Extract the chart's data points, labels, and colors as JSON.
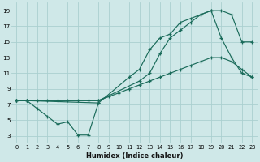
{
  "background_color": "#cfe8e8",
  "grid_color": "#aad0d0",
  "line_color": "#1a6b5a",
  "xlabel": "Humidex (Indice chaleur)",
  "xlim": [
    -0.5,
    23.5
  ],
  "ylim": [
    2.0,
    20.0
  ],
  "xticks": [
    0,
    1,
    2,
    3,
    4,
    5,
    6,
    7,
    8,
    9,
    10,
    11,
    12,
    13,
    14,
    15,
    16,
    17,
    18,
    19,
    20,
    21,
    22,
    23
  ],
  "yticks": [
    3,
    5,
    7,
    9,
    11,
    13,
    15,
    17,
    19
  ],
  "series": [
    {
      "x": [
        0,
        1,
        2,
        3,
        4,
        5,
        6,
        7,
        8
      ],
      "y": [
        7.5,
        7.5,
        6.5,
        5.5,
        4.5,
        4.8,
        3.1,
        3.1,
        7.2
      ]
    },
    {
      "x": [
        0,
        1,
        2,
        3,
        4,
        5,
        6,
        7,
        8,
        9,
        10,
        11,
        12,
        13,
        14,
        15,
        16,
        17,
        18,
        19,
        20,
        21,
        22,
        23
      ],
      "y": [
        7.5,
        7.5,
        7.5,
        7.5,
        7.5,
        7.5,
        7.5,
        7.5,
        7.5,
        8.0,
        8.5,
        9.0,
        9.5,
        10.0,
        10.5,
        11.0,
        11.5,
        12.0,
        12.5,
        13.0,
        13.0,
        12.5,
        11.5,
        10.5
      ]
    },
    {
      "x": [
        0,
        1,
        8,
        12,
        13,
        14,
        15,
        16,
        17,
        18,
        19,
        20,
        21,
        22,
        23
      ],
      "y": [
        7.5,
        7.5,
        7.5,
        10.0,
        11.0,
        13.5,
        15.5,
        16.5,
        17.5,
        18.5,
        19.0,
        19.0,
        18.5,
        15.0,
        15.0
      ]
    },
    {
      "x": [
        0,
        1,
        8,
        11,
        12,
        13,
        14,
        15,
        16,
        17,
        18,
        19,
        20,
        21,
        22,
        23
      ],
      "y": [
        7.5,
        7.5,
        7.2,
        10.5,
        11.5,
        14.0,
        15.5,
        16.0,
        17.5,
        18.0,
        18.5,
        19.0,
        15.5,
        13.0,
        11.0,
        10.5
      ]
    }
  ]
}
